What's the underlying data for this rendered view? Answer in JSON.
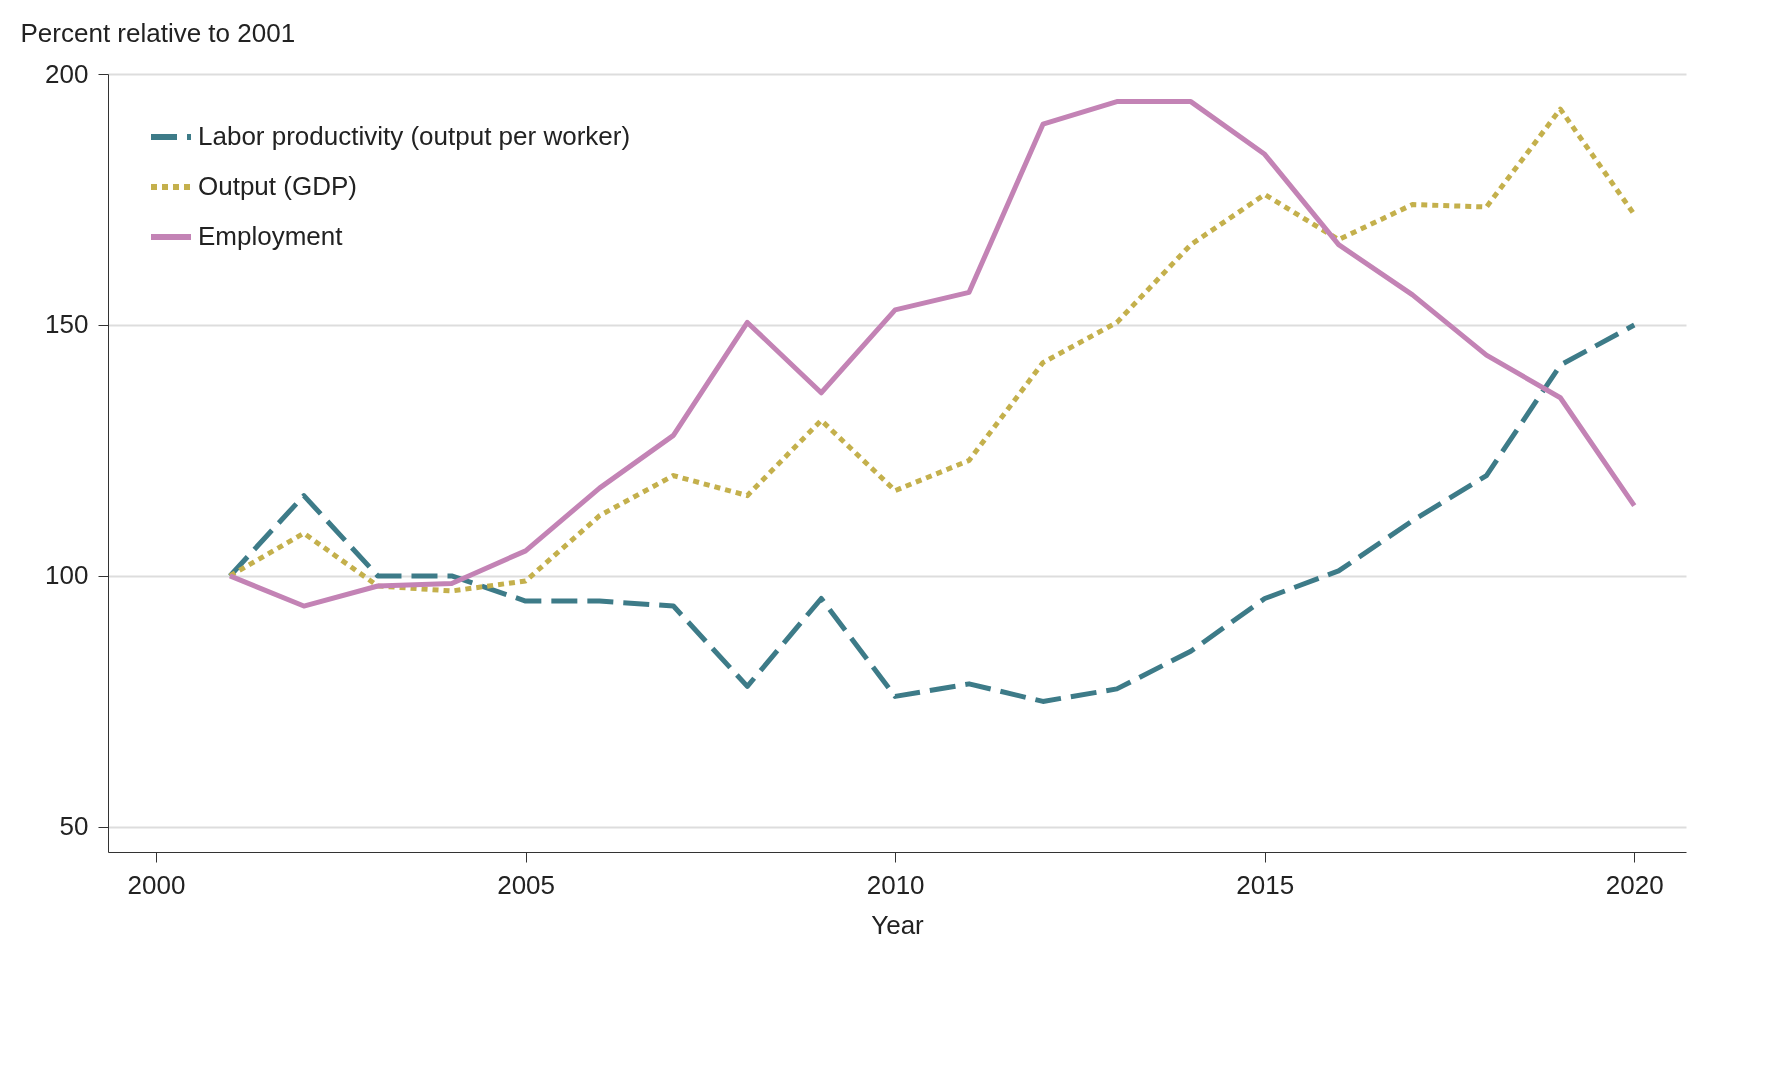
{
  "chart_data": {
    "type": "line",
    "ylabel": "Percent relative to 2001",
    "xlabel": "Year",
    "x": [
      2001,
      2002,
      2003,
      2004,
      2005,
      2006,
      2007,
      2008,
      2009,
      2010,
      2011,
      2012,
      2013,
      2014,
      2015,
      2016,
      2017,
      2018,
      2019,
      2020
    ],
    "series": [
      {
        "name": "Labor productivity (output per worker)",
        "color": "#3d7b88",
        "line_style": "dashed",
        "values": [
          100,
          116,
          100,
          100,
          95,
          95,
          94,
          78,
          95.5,
          76,
          78.5,
          75,
          77.5,
          85,
          95.5,
          101,
          111,
          120,
          142,
          150
        ]
      },
      {
        "name": "Output (GDP)",
        "color": "#c4b04c",
        "line_style": "dotted",
        "values": [
          100,
          108.5,
          98,
          97,
          99,
          112,
          120,
          116,
          131,
          117,
          123,
          142.5,
          150.5,
          166,
          176,
          167,
          174,
          173.5,
          193,
          172
        ]
      },
      {
        "name": "Employment",
        "color": "#c383b5",
        "line_style": "solid",
        "values": [
          100,
          94,
          98,
          98.5,
          105,
          117.5,
          128,
          150.5,
          136.5,
          153,
          156.5,
          190,
          194.5,
          194.5,
          184,
          166,
          156,
          144,
          135.5,
          114
        ]
      }
    ],
    "xlim": [
      1999.35,
      2020.7
    ],
    "xticks": [
      2000,
      2005,
      2010,
      2015,
      2020
    ],
    "ylim": [
      45,
      200
    ],
    "yticks": [
      50,
      100,
      150,
      200
    ],
    "grid": "y",
    "legend": "top left",
    "marker": "none"
  }
}
